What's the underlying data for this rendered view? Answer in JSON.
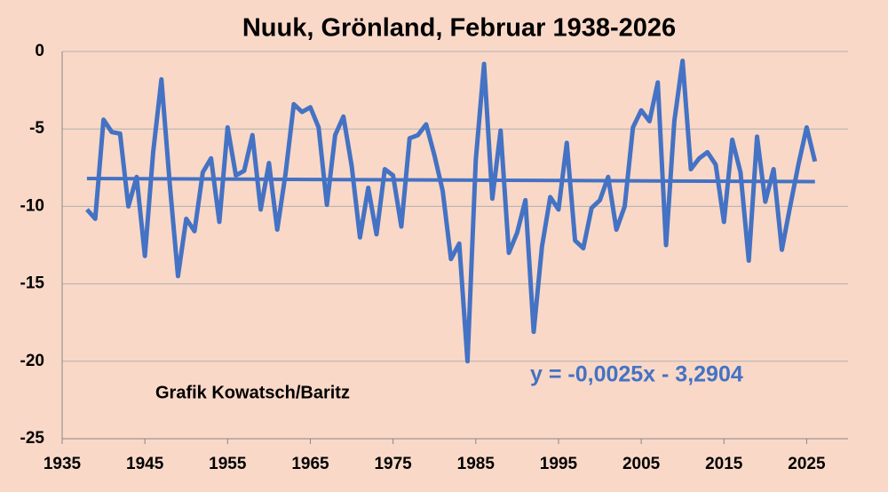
{
  "chart_data": {
    "type": "line",
    "title": "Nuuk, Grönland, Februar 1938-2026",
    "x": [
      1938,
      1939,
      1940,
      1941,
      1942,
      1943,
      1944,
      1945,
      1946,
      1947,
      1948,
      1949,
      1950,
      1951,
      1952,
      1953,
      1954,
      1955,
      1956,
      1957,
      1958,
      1959,
      1960,
      1961,
      1962,
      1963,
      1964,
      1965,
      1966,
      1967,
      1968,
      1969,
      1970,
      1971,
      1972,
      1973,
      1974,
      1975,
      1976,
      1977,
      1978,
      1979,
      1980,
      1981,
      1982,
      1983,
      1984,
      1985,
      1986,
      1987,
      1988,
      1989,
      1990,
      1991,
      1992,
      1993,
      1994,
      1995,
      1996,
      1997,
      1998,
      1999,
      2000,
      2001,
      2002,
      2003,
      2004,
      2005,
      2006,
      2007,
      2008,
      2009,
      2010,
      2011,
      2012,
      2013,
      2014,
      2015,
      2016,
      2017,
      2018,
      2019,
      2020,
      2021,
      2022,
      2023,
      2024,
      2025,
      2026
    ],
    "series": [
      {
        "color": "#4472c4",
        "values": [
          -10.2,
          -10.8,
          -4.4,
          -5.2,
          -5.3,
          -10.0,
          -8.1,
          -13.2,
          -6.5,
          -1.8,
          -8.5,
          -14.5,
          -10.8,
          -11.6,
          -7.8,
          -6.9,
          -11.0,
          -4.9,
          -8.0,
          -7.7,
          -5.4,
          -10.2,
          -7.2,
          -11.5,
          -7.9,
          -3.4,
          -3.9,
          -3.6,
          -4.9,
          -9.9,
          -5.4,
          -4.2,
          -7.4,
          -12.0,
          -8.8,
          -11.8,
          -7.6,
          -8.0,
          -11.3,
          -5.6,
          -5.4,
          -4.7,
          -6.7,
          -9.0,
          -13.4,
          -12.4,
          -20.0,
          -7.0,
          -0.8,
          -9.5,
          -5.1,
          -13.0,
          -11.7,
          -9.6,
          -18.1,
          -12.6,
          -9.4,
          -10.2,
          -5.9,
          -12.2,
          -12.7,
          -10.1,
          -9.6,
          -8.1,
          -11.5,
          -10.0,
          -4.9,
          -3.8,
          -4.5,
          -2.0,
          -12.5,
          -4.5,
          -0.6,
          -7.6,
          -6.9,
          -6.5,
          -7.3,
          -11.0,
          -5.7,
          -7.8,
          -13.5,
          -5.5,
          -9.7,
          -7.6,
          -12.8,
          -10.0,
          -7.3,
          -4.9,
          -7.1
        ]
      }
    ],
    "trend": {
      "color": "#4472c4",
      "x": [
        1938,
        2026
      ],
      "values": [
        -8.2,
        -8.4
      ]
    },
    "annotations": [
      "Grafik Kowatsch/Baritz",
      "y = -0,0025x - 3,2904"
    ],
    "xlim": [
      1935,
      2030
    ],
    "xticks": [
      1935,
      1945,
      1955,
      1965,
      1975,
      1985,
      1995,
      2005,
      2015,
      2025
    ],
    "ylim": [
      -25,
      0
    ],
    "yticks": [
      0,
      -5,
      -10,
      -15,
      -20,
      -25
    ],
    "grid": true
  }
}
